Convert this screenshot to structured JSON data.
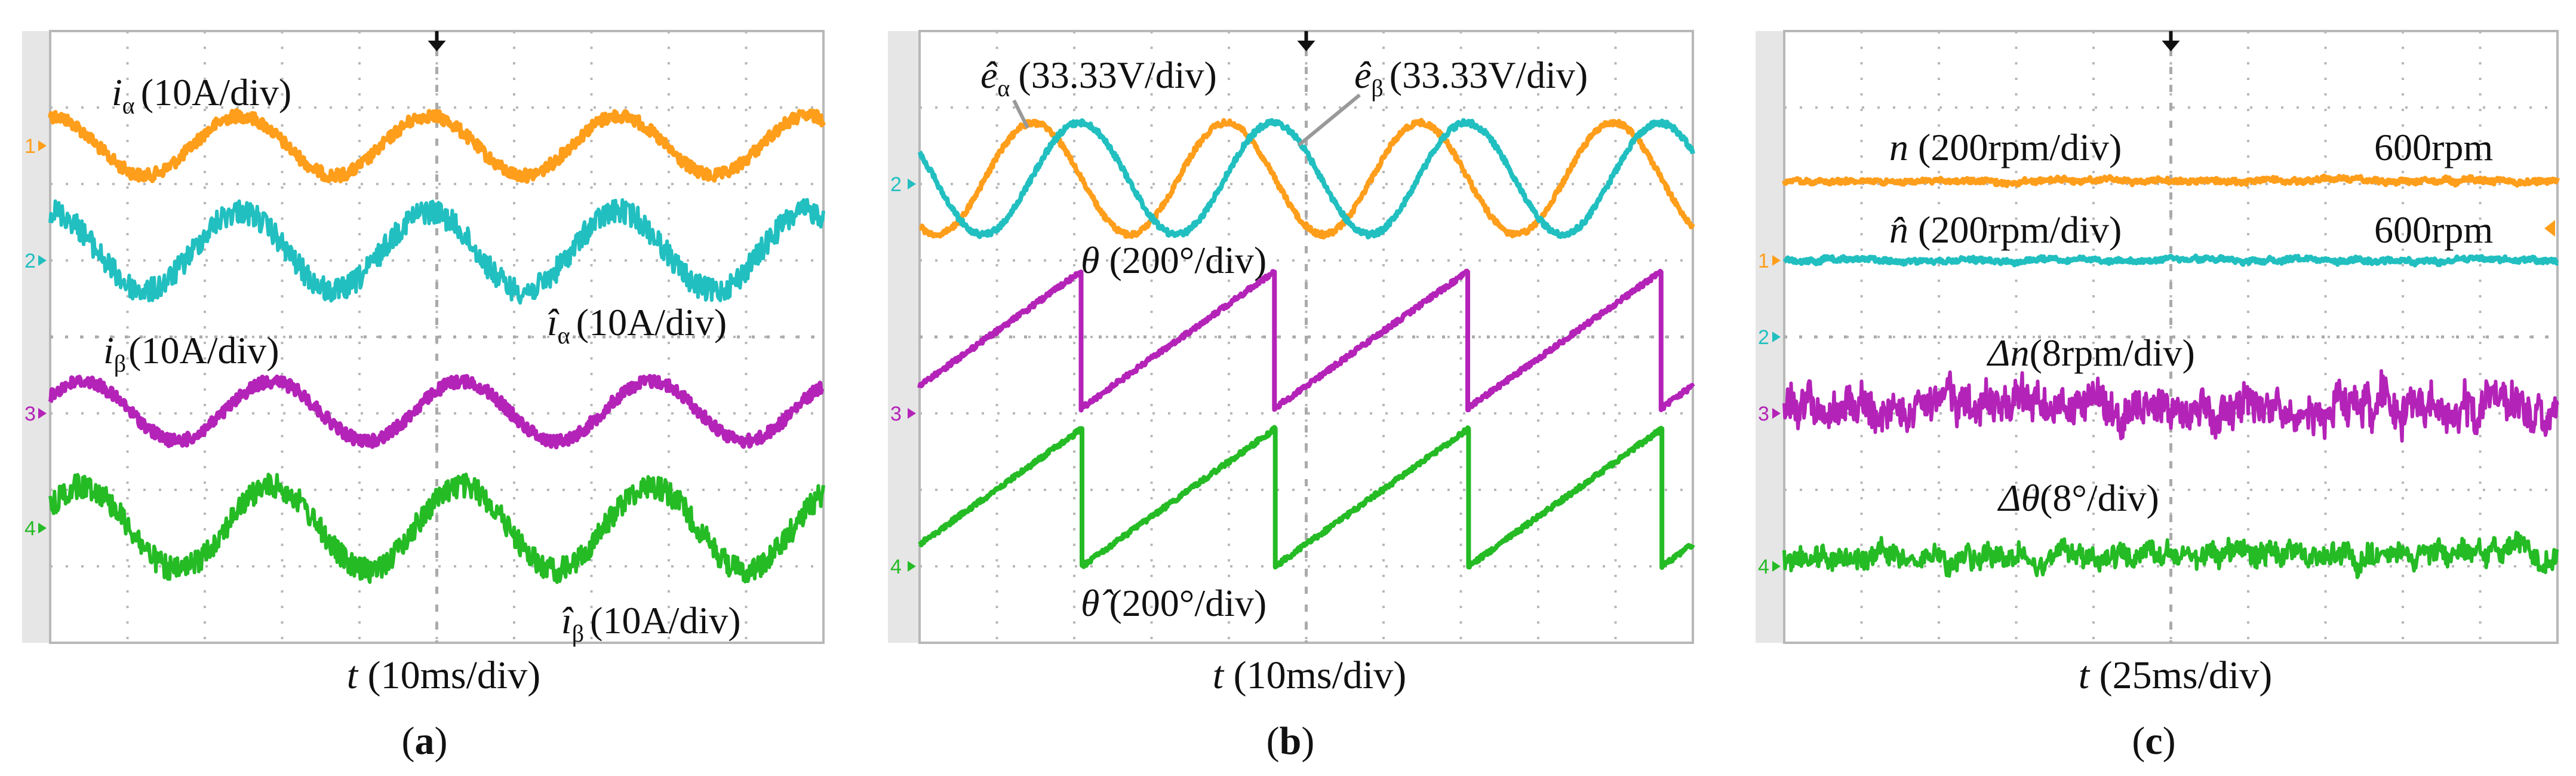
{
  "colors": {
    "orange": "#ff9e1b",
    "cyan": "#22bfc0",
    "magenta": "#b423b8",
    "green": "#25bb25",
    "grid": "#b8b8b8",
    "strip": "#e6e6e6"
  },
  "chart_data": [
    {
      "panel": "a",
      "type": "line",
      "caption": "(a)",
      "caption_letter": "a",
      "xlabel": {
        "sym": "t",
        "unit": "(10ms/div)"
      },
      "divisions": [
        10,
        8
      ],
      "markers": [
        {
          "label": "1",
          "color": "orange",
          "level_div": 1.5
        },
        {
          "label": "2",
          "color": "cyan",
          "level_div": 3.0
        },
        {
          "label": "3",
          "color": "magenta",
          "level_div": 5.0
        },
        {
          "label": "4",
          "color": "green",
          "level_div": 6.5
        }
      ],
      "series": [
        {
          "sym": "i",
          "sub": "α",
          "unit": "(10A/div)",
          "color": "orange",
          "shape": "sine",
          "center_div": 1.5,
          "amp_div": 0.39,
          "period_div": 2.45,
          "peak_div": 4.9,
          "noise_div": 0.08
        },
        {
          "sym": "î",
          "sub": "α",
          "unit": "(10A/div)",
          "color": "cyan",
          "shape": "sine",
          "center_div": 2.88,
          "amp_div": 0.52,
          "period_div": 2.45,
          "peak_div": 4.9,
          "noise_div": 0.16
        },
        {
          "sym": "i",
          "sub": "β",
          "unit": "(10A/div)",
          "color": "magenta",
          "shape": "sine",
          "center_div": 4.97,
          "amp_div": 0.39,
          "period_div": 2.45,
          "peak_div": 2.87,
          "noise_div": 0.08
        },
        {
          "sym": "î",
          "sub": "β",
          "unit": "(10A/div)",
          "color": "green",
          "shape": "sine",
          "center_div": 6.5,
          "amp_div": 0.55,
          "period_div": 2.45,
          "peak_div": 2.87,
          "noise_div": 0.16
        }
      ]
    },
    {
      "panel": "b",
      "type": "line",
      "caption": "(b)",
      "caption_letter": "b",
      "xlabel": {
        "sym": "t",
        "unit": "(10ms/div)"
      },
      "divisions": [
        10,
        8
      ],
      "markers": [
        {
          "label": "2",
          "color": "cyan",
          "level_div": 2.0
        },
        {
          "label": "3",
          "color": "magenta",
          "level_div": 5.0
        },
        {
          "label": "4",
          "color": "green",
          "level_div": 7.0
        }
      ],
      "series": [
        {
          "sym": "ê",
          "sub": "α",
          "unit": "(33.33V/div)",
          "color": "orange",
          "shape": "sine",
          "center_div": 1.93,
          "amp_div": 0.73,
          "period_div": 2.5,
          "peak_div": 1.47,
          "noise_div": 0.035
        },
        {
          "sym": "ê",
          "sub": "β",
          "unit": "(33.33V/div)",
          "color": "cyan",
          "shape": "sine",
          "center_div": 1.93,
          "amp_div": 0.73,
          "period_div": 2.5,
          "peak_div": 2.07,
          "noise_div": 0.035
        },
        {
          "sym": "θ",
          "sub": "",
          "unit": "(200°/div)",
          "color": "magenta",
          "shape": "sawtooth",
          "low_div": 4.94,
          "high_div": 3.15,
          "period_div": 2.5,
          "reset_div": 2.08,
          "noise_div": 0.03
        },
        {
          "sym": "θ̂",
          "sub": "",
          "unit": "(200°/div)",
          "color": "green",
          "shape": "sawtooth",
          "low_div": 7.0,
          "high_div": 5.2,
          "period_div": 2.5,
          "reset_div": 2.1,
          "noise_div": 0.03
        }
      ]
    },
    {
      "panel": "c",
      "type": "line",
      "caption": "(c)",
      "caption_letter": "c",
      "xlabel": {
        "sym": "t",
        "unit": "(25ms/div)"
      },
      "divisions": [
        10,
        8
      ],
      "markers": [
        {
          "label": "1",
          "color": "orange",
          "level_div": 3.0
        },
        {
          "label": "2",
          "color": "cyan",
          "level_div": 4.0
        },
        {
          "label": "3",
          "color": "magenta",
          "level_div": 5.0
        },
        {
          "label": "4",
          "color": "green",
          "level_div": 7.0
        }
      ],
      "right_marker": {
        "color": "orange",
        "level_div": 2.58
      },
      "series": [
        {
          "sym": "n",
          "sub": "",
          "unit": "(200rpm/div)",
          "value": "600rpm",
          "color": "orange",
          "shape": "flat",
          "center_div": 1.96,
          "noise_div": 0.04
        },
        {
          "sym": "n̂",
          "sub": "",
          "unit": "(200rpm/div)",
          "value": "600rpm",
          "color": "cyan",
          "shape": "flat",
          "center_div": 3.0,
          "noise_div": 0.04
        },
        {
          "sym": "Δn",
          "sub": "",
          "unit": "(8rpm/div)",
          "color": "magenta",
          "shape": "flat",
          "center_div": 4.93,
          "noise_div": 0.3
        },
        {
          "sym": "Δθ",
          "sub": "",
          "unit": "(8°/div)",
          "color": "green",
          "shape": "flat",
          "center_div": 6.86,
          "noise_div": 0.17
        }
      ]
    }
  ]
}
